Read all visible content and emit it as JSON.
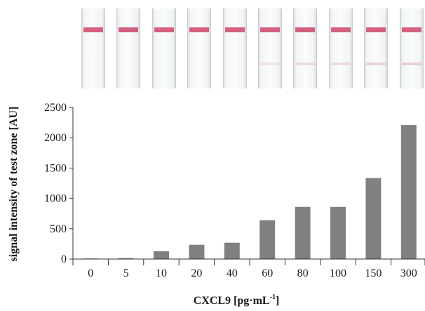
{
  "strips": {
    "count": 10,
    "control_line_color": "#d2607e",
    "test_line_color": "#e8b9c8",
    "test_line_visibility": [
      0,
      0,
      0,
      0,
      0,
      0.35,
      0.5,
      0.5,
      0.6,
      0.7
    ]
  },
  "chart_data": {
    "type": "bar",
    "categories": [
      "0",
      "5",
      "10",
      "20",
      "40",
      "60",
      "80",
      "100",
      "150",
      "300"
    ],
    "values": [
      0,
      15,
      130,
      235,
      270,
      640,
      860,
      860,
      1335,
      2210
    ],
    "ylabel": "signal intensity of test zone [AU]",
    "xlabel_main": "CXCL9 [pg·mL",
    "xlabel_sup": "-1",
    "xlabel_end": "]",
    "ylim": [
      0,
      2500
    ],
    "yticks": [
      "0",
      "500",
      "1000",
      "1500",
      "2000",
      "2500"
    ],
    "bar_color": "#808080",
    "grid": false
  }
}
